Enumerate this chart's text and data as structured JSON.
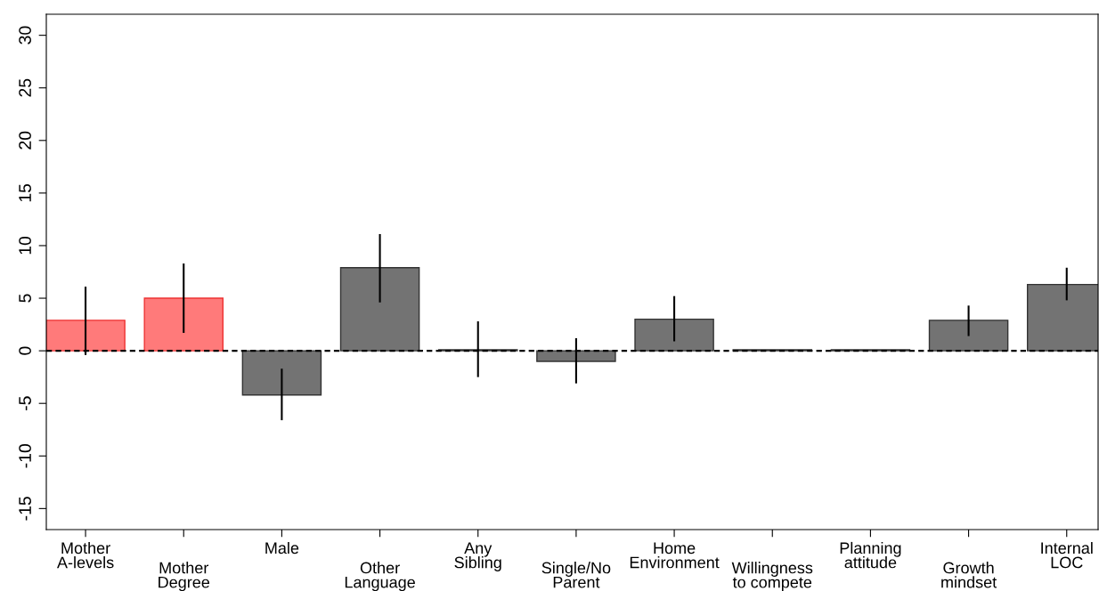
{
  "chart_data": {
    "type": "bar",
    "categories": [
      "Mother\nA-levels",
      "Mother\nDegree",
      "Male",
      "Other\nLanguage",
      "Any\nSibling",
      "Single/No\nParent",
      "Home\nEnvironment",
      "Willingness\nto compete",
      "Planning\nattitude",
      "Growth\nmindset",
      "Internal\nLOC"
    ],
    "values": [
      2.9,
      5.0,
      -4.2,
      7.9,
      0.1,
      -1.0,
      3.0,
      0.1,
      0.1,
      2.9,
      6.3
    ],
    "errors": [
      [
        -0.4,
        6.1
      ],
      [
        1.7,
        8.3
      ],
      [
        -6.6,
        -1.7
      ],
      [
        4.6,
        11.1
      ],
      [
        -2.5,
        2.8
      ],
      [
        -3.1,
        1.2
      ],
      [
        0.9,
        5.2
      ],
      null,
      null,
      [
        1.4,
        4.3
      ],
      [
        4.8,
        7.9
      ]
    ],
    "colors": [
      "#ff7a7a",
      "#ff7a7a",
      "#737373",
      "#737373",
      "#737373",
      "#737373",
      "#737373",
      "#737373",
      "#737373",
      "#737373",
      "#737373"
    ],
    "ylim": [
      -17,
      32
    ],
    "yticks": [
      {
        "value": -15,
        "label": "-15"
      },
      {
        "value": -10,
        "label": "-10"
      },
      {
        "value": -5,
        "label": "-5"
      },
      0,
      5,
      10,
      15,
      20,
      25,
      30
    ],
    "ref_lines": [
      {
        "axis": "y",
        "value": 0,
        "color": "#000000",
        "line_style": "dashed"
      }
    ],
    "grid": false
  }
}
